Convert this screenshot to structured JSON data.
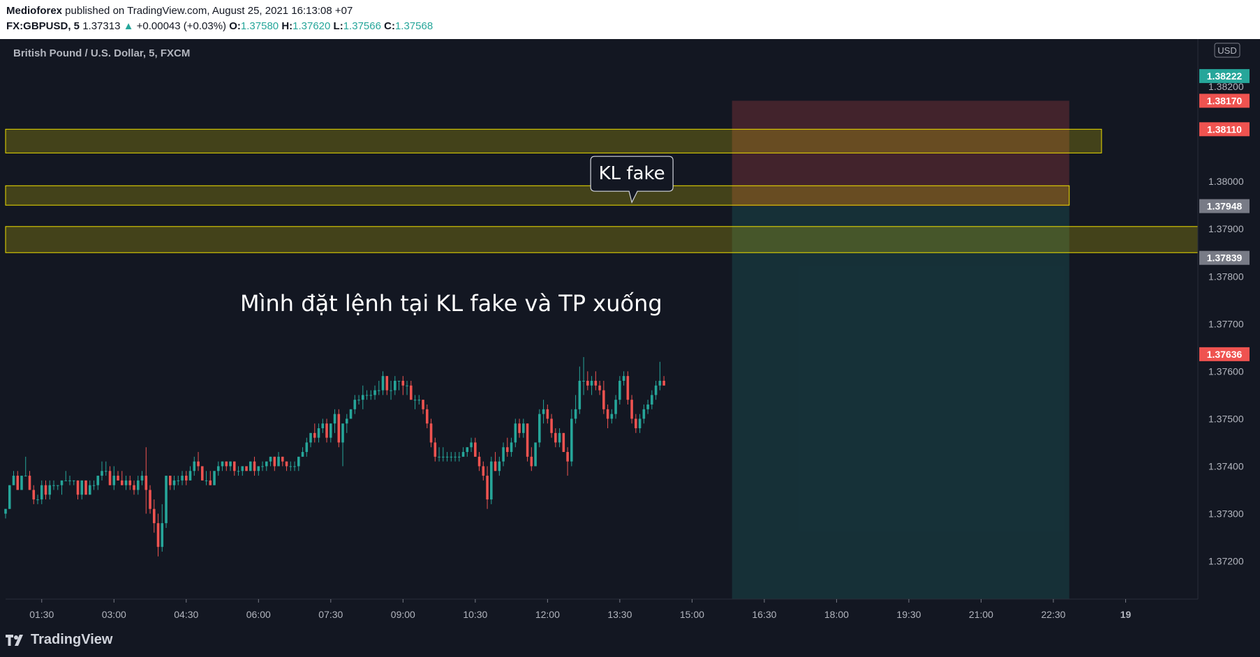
{
  "header": {
    "publisher": "Medioforex",
    "published_text": " published on TradingView.com, August 25, 2021 16:13:08 +07",
    "symbol": "FX:GBPUSD, 5",
    "last": "1.37313",
    "change": "+0.00043 (+0.03%)",
    "o_label": "O:",
    "o_value": "1.37580",
    "h_label": "H:",
    "h_value": "1.37620",
    "l_label": "L:",
    "l_value": "1.37566",
    "c_label": "C:",
    "c_value": "1.37568"
  },
  "legend_title": "British Pound / U.S. Dollar, 5, FXCM",
  "footer": {
    "brand": "TradingView"
  },
  "colors": {
    "background": "#131722",
    "up": "#26a69a",
    "down": "#ef5350",
    "zone": "#f0e000",
    "stop_zone": "#ef5350",
    "target_zone": "#26a69a",
    "axis_text": "#b2b5be"
  },
  "chart_data": {
    "type": "candlestick",
    "title": "British Pound / U.S. Dollar, 5, FXCM",
    "y_unit": "USD",
    "ylim": [
      1.3712,
      1.383
    ],
    "y_ticks": [
      "1.37200",
      "1.37300",
      "1.37400",
      "1.37500",
      "1.37600",
      "1.37700",
      "1.37800",
      "1.37900",
      "1.38000",
      "1.38200"
    ],
    "x_ticks": [
      "01:30",
      "03:00",
      "04:30",
      "06:00",
      "07:30",
      "09:00",
      "10:30",
      "12:00",
      "13:30",
      "15:00",
      "16:30",
      "18:00",
      "19:30",
      "21:00",
      "22:30",
      "19"
    ],
    "time_range_hours": [
      0.75,
      25.5
    ],
    "price_labels": [
      {
        "value": "1.38222",
        "color": "#26a69a"
      },
      {
        "value": "1.38170",
        "color": "#ef5350"
      },
      {
        "value": "1.38110",
        "color": "#ef5350"
      },
      {
        "value": "1.37948",
        "color": "#787b86"
      },
      {
        "value": "1.37839",
        "color": "#787b86"
      },
      {
        "value": "1.37636",
        "color": "#ef5350"
      }
    ],
    "zones": [
      {
        "top": 1.3811,
        "bottom": 1.3806,
        "end_time": 23.5
      },
      {
        "top": 1.37991,
        "bottom": 1.3795,
        "end_time": 22.83
      },
      {
        "top": 1.37905,
        "bottom": 1.3785,
        "end_time": 25.5
      }
    ],
    "position": {
      "side": "short",
      "start_time": 15.83,
      "end_time": 22.83,
      "entry": 1.37948,
      "stop": 1.3817,
      "target": 1.3715
    },
    "annotations": [
      {
        "type": "callout",
        "text": "KL fake",
        "time": 13.75,
        "price": 1.3795
      },
      {
        "type": "text",
        "text": "Mình đặt lệnh tại KL fake và TP xuống",
        "time": 10.0,
        "price": 1.37727
      }
    ],
    "candles": {
      "start_time": 0.75,
      "interval_hours": 0.08333,
      "columns": [
        "open",
        "high",
        "low",
        "close"
      ],
      "values": [
        [
          1.373,
          1.3731,
          1.3729,
          1.3731
        ],
        [
          1.3731,
          1.3736,
          1.3731,
          1.3736
        ],
        [
          1.3736,
          1.3739,
          1.3736,
          1.3738
        ],
        [
          1.3738,
          1.3739,
          1.3735,
          1.3735
        ],
        [
          1.3735,
          1.3738,
          1.3735,
          1.3738
        ],
        [
          1.3738,
          1.3742,
          1.3738,
          1.3738
        ],
        [
          1.3738,
          1.3739,
          1.3735,
          1.3735
        ],
        [
          1.3735,
          1.3736,
          1.3732,
          1.3733
        ],
        [
          1.3733,
          1.3734,
          1.3732,
          1.3733
        ],
        [
          1.3733,
          1.3737,
          1.3732,
          1.3736
        ],
        [
          1.3736,
          1.3737,
          1.3733,
          1.3734
        ],
        [
          1.3734,
          1.3737,
          1.3733,
          1.3736
        ],
        [
          1.3736,
          1.3737,
          1.3735,
          1.3736
        ],
        [
          1.3736,
          1.3736,
          1.3735,
          1.3736
        ],
        [
          1.3736,
          1.3737,
          1.3734,
          1.3737
        ],
        [
          1.3737,
          1.3739,
          1.3737,
          1.3737
        ],
        [
          1.3737,
          1.3738,
          1.3736,
          1.3737
        ],
        [
          1.3737,
          1.3737,
          1.3736,
          1.3737
        ],
        [
          1.3737,
          1.3737,
          1.3733,
          1.3734
        ],
        [
          1.3734,
          1.3737,
          1.3733,
          1.3737
        ],
        [
          1.3737,
          1.3737,
          1.3734,
          1.3734
        ],
        [
          1.3734,
          1.3737,
          1.3734,
          1.3736
        ],
        [
          1.3736,
          1.3737,
          1.3735,
          1.3736
        ],
        [
          1.3736,
          1.3738,
          1.3735,
          1.3738
        ],
        [
          1.3738,
          1.3741,
          1.3737,
          1.3739
        ],
        [
          1.3739,
          1.3741,
          1.3738,
          1.3739
        ],
        [
          1.3739,
          1.374,
          1.3736,
          1.3736
        ],
        [
          1.3736,
          1.374,
          1.3735,
          1.3738
        ],
        [
          1.3738,
          1.3739,
          1.3737,
          1.3737
        ],
        [
          1.3737,
          1.3739,
          1.3736,
          1.3736
        ],
        [
          1.3736,
          1.3738,
          1.3735,
          1.3737
        ],
        [
          1.3737,
          1.3738,
          1.3735,
          1.3736
        ],
        [
          1.3736,
          1.3737,
          1.3734,
          1.3735
        ],
        [
          1.3735,
          1.3738,
          1.3734,
          1.3737
        ],
        [
          1.3737,
          1.3739,
          1.3736,
          1.3738
        ],
        [
          1.3738,
          1.3744,
          1.373,
          1.3735
        ],
        [
          1.3735,
          1.3736,
          1.373,
          1.3731
        ],
        [
          1.3731,
          1.3733,
          1.3726,
          1.3728
        ],
        [
          1.3728,
          1.373,
          1.3721,
          1.3723
        ],
        [
          1.3723,
          1.3732,
          1.3722,
          1.3728
        ],
        [
          1.3728,
          1.3738,
          1.3727,
          1.3738
        ],
        [
          1.3738,
          1.3738,
          1.3735,
          1.3736
        ],
        [
          1.3736,
          1.3738,
          1.3735,
          1.3737
        ],
        [
          1.3737,
          1.3738,
          1.3736,
          1.3737
        ],
        [
          1.3737,
          1.3739,
          1.3736,
          1.3738
        ],
        [
          1.3738,
          1.3739,
          1.3736,
          1.3737
        ],
        [
          1.3737,
          1.374,
          1.3737,
          1.3739
        ],
        [
          1.3739,
          1.3742,
          1.3738,
          1.3741
        ],
        [
          1.3741,
          1.3743,
          1.3739,
          1.374
        ],
        [
          1.374,
          1.374,
          1.3737,
          1.3737
        ],
        [
          1.3737,
          1.3739,
          1.3736,
          1.3737
        ],
        [
          1.3737,
          1.3739,
          1.3736,
          1.3736
        ],
        [
          1.3736,
          1.3739,
          1.3736,
          1.3739
        ],
        [
          1.3739,
          1.3741,
          1.3738,
          1.374
        ],
        [
          1.374,
          1.3741,
          1.3739,
          1.3741
        ],
        [
          1.3741,
          1.3741,
          1.3739,
          1.374
        ],
        [
          1.374,
          1.3741,
          1.3739,
          1.3741
        ],
        [
          1.3741,
          1.3741,
          1.3738,
          1.3739
        ],
        [
          1.3739,
          1.374,
          1.3738,
          1.3739
        ],
        [
          1.3739,
          1.374,
          1.3738,
          1.374
        ],
        [
          1.374,
          1.374,
          1.3739,
          1.3739
        ],
        [
          1.3739,
          1.3741,
          1.3739,
          1.3741
        ],
        [
          1.3741,
          1.3742,
          1.3738,
          1.3739
        ],
        [
          1.3739,
          1.374,
          1.3738,
          1.374
        ],
        [
          1.374,
          1.3741,
          1.3739,
          1.374
        ],
        [
          1.374,
          1.3741,
          1.3739,
          1.3741
        ],
        [
          1.3741,
          1.3742,
          1.374,
          1.3742
        ],
        [
          1.3742,
          1.3742,
          1.3739,
          1.374
        ],
        [
          1.374,
          1.3743,
          1.374,
          1.3742
        ],
        [
          1.3742,
          1.3742,
          1.374,
          1.3741
        ],
        [
          1.3741,
          1.3741,
          1.3739,
          1.374
        ],
        [
          1.374,
          1.3741,
          1.3739,
          1.374
        ],
        [
          1.374,
          1.3741,
          1.3739,
          1.374
        ],
        [
          1.374,
          1.3742,
          1.3739,
          1.3742
        ],
        [
          1.3742,
          1.3744,
          1.3742,
          1.3743
        ],
        [
          1.3743,
          1.3746,
          1.3742,
          1.3745
        ],
        [
          1.3745,
          1.3747,
          1.3744,
          1.3747
        ],
        [
          1.3747,
          1.3749,
          1.3745,
          1.3746
        ],
        [
          1.3746,
          1.3749,
          1.3745,
          1.3748
        ],
        [
          1.3748,
          1.375,
          1.3747,
          1.3749
        ],
        [
          1.3749,
          1.375,
          1.3745,
          1.3746
        ],
        [
          1.3746,
          1.3749,
          1.3745,
          1.3749
        ],
        [
          1.3749,
          1.3752,
          1.3747,
          1.3751
        ],
        [
          1.3751,
          1.3752,
          1.3744,
          1.3745
        ],
        [
          1.3745,
          1.3748,
          1.374,
          1.3749
        ],
        [
          1.3749,
          1.3751,
          1.3747,
          1.375
        ],
        [
          1.375,
          1.3752,
          1.375,
          1.3752
        ],
        [
          1.3752,
          1.3755,
          1.3751,
          1.3754
        ],
        [
          1.3754,
          1.3755,
          1.3753,
          1.3754
        ],
        [
          1.3754,
          1.3757,
          1.3752,
          1.3755
        ],
        [
          1.3755,
          1.3756,
          1.3754,
          1.3755
        ],
        [
          1.3755,
          1.3756,
          1.3754,
          1.3755
        ],
        [
          1.3755,
          1.3757,
          1.3754,
          1.3756
        ],
        [
          1.3756,
          1.3758,
          1.3755,
          1.3756
        ],
        [
          1.3756,
          1.376,
          1.3755,
          1.3759
        ],
        [
          1.3759,
          1.3759,
          1.3755,
          1.3756
        ],
        [
          1.3756,
          1.3758,
          1.3754,
          1.3756
        ],
        [
          1.3756,
          1.3759,
          1.3755,
          1.3758
        ],
        [
          1.3758,
          1.3758,
          1.3756,
          1.3758
        ],
        [
          1.3758,
          1.3759,
          1.3755,
          1.3757
        ],
        [
          1.3757,
          1.3758,
          1.3755,
          1.3757
        ],
        [
          1.3757,
          1.3758,
          1.3754,
          1.3754
        ],
        [
          1.3754,
          1.3755,
          1.3752,
          1.3754
        ],
        [
          1.3754,
          1.3755,
          1.3753,
          1.3754
        ],
        [
          1.3754,
          1.3754,
          1.3751,
          1.3752
        ],
        [
          1.3752,
          1.3753,
          1.3748,
          1.3749
        ],
        [
          1.3749,
          1.375,
          1.3744,
          1.3745
        ],
        [
          1.3745,
          1.3746,
          1.3741,
          1.3742
        ],
        [
          1.3742,
          1.3744,
          1.3741,
          1.3742
        ],
        [
          1.3742,
          1.3744,
          1.3741,
          1.3742
        ],
        [
          1.3742,
          1.3743,
          1.3741,
          1.3742
        ],
        [
          1.3742,
          1.3743,
          1.3741,
          1.3742
        ],
        [
          1.3742,
          1.3743,
          1.3741,
          1.3742
        ],
        [
          1.3742,
          1.3743,
          1.3741,
          1.3742
        ],
        [
          1.3742,
          1.3744,
          1.3742,
          1.3743
        ],
        [
          1.3743,
          1.3744,
          1.3742,
          1.3744
        ],
        [
          1.3744,
          1.3746,
          1.3743,
          1.3745
        ],
        [
          1.3745,
          1.3746,
          1.3742,
          1.3742
        ],
        [
          1.3742,
          1.3743,
          1.3739,
          1.374
        ],
        [
          1.374,
          1.3741,
          1.3737,
          1.3738
        ],
        [
          1.3738,
          1.374,
          1.3731,
          1.3733
        ],
        [
          1.3733,
          1.3742,
          1.3732,
          1.3741
        ],
        [
          1.3741,
          1.3743,
          1.3739,
          1.3739
        ],
        [
          1.3739,
          1.3742,
          1.3738,
          1.3741
        ],
        [
          1.3741,
          1.3745,
          1.374,
          1.3744
        ],
        [
          1.3744,
          1.3746,
          1.3742,
          1.3743
        ],
        [
          1.3743,
          1.3746,
          1.3742,
          1.3745
        ],
        [
          1.3745,
          1.375,
          1.3744,
          1.3749
        ],
        [
          1.3749,
          1.375,
          1.3746,
          1.3747
        ],
        [
          1.3747,
          1.375,
          1.3746,
          1.3749
        ],
        [
          1.3749,
          1.3749,
          1.3741,
          1.3742
        ],
        [
          1.3742,
          1.3744,
          1.3739,
          1.374
        ],
        [
          1.374,
          1.3745,
          1.374,
          1.3745
        ],
        [
          1.3745,
          1.3752,
          1.3744,
          1.3751
        ],
        [
          1.3751,
          1.3754,
          1.3749,
          1.3752
        ],
        [
          1.3752,
          1.3753,
          1.3749,
          1.375
        ],
        [
          1.375,
          1.3751,
          1.3746,
          1.3747
        ],
        [
          1.3747,
          1.3748,
          1.3744,
          1.3745
        ],
        [
          1.3745,
          1.3748,
          1.3744,
          1.3747
        ],
        [
          1.3747,
          1.3747,
          1.3743,
          1.3743
        ],
        [
          1.3743,
          1.3744,
          1.3738,
          1.3741
        ],
        [
          1.3741,
          1.3752,
          1.374,
          1.375
        ],
        [
          1.375,
          1.3755,
          1.3749,
          1.3752
        ],
        [
          1.3752,
          1.3761,
          1.3751,
          1.3758
        ],
        [
          1.3758,
          1.3763,
          1.3755,
          1.3758
        ],
        [
          1.3758,
          1.376,
          1.3756,
          1.3757
        ],
        [
          1.3757,
          1.3759,
          1.3755,
          1.3758
        ],
        [
          1.3758,
          1.376,
          1.3756,
          1.3757
        ],
        [
          1.3757,
          1.3758,
          1.3755,
          1.3756
        ],
        [
          1.3756,
          1.3758,
          1.3751,
          1.3752
        ],
        [
          1.3752,
          1.3753,
          1.3748,
          1.375
        ],
        [
          1.375,
          1.3752,
          1.3749,
          1.3751
        ],
        [
          1.3751,
          1.3755,
          1.375,
          1.3754
        ],
        [
          1.3754,
          1.3759,
          1.3753,
          1.3758
        ],
        [
          1.3758,
          1.376,
          1.3757,
          1.3759
        ],
        [
          1.3759,
          1.376,
          1.3753,
          1.3754
        ],
        [
          1.3754,
          1.3755,
          1.3749,
          1.375
        ],
        [
          1.375,
          1.3751,
          1.3747,
          1.3748
        ],
        [
          1.3748,
          1.3751,
          1.3747,
          1.375
        ],
        [
          1.375,
          1.3753,
          1.3749,
          1.3752
        ],
        [
          1.3752,
          1.3754,
          1.3751,
          1.3753
        ],
        [
          1.3753,
          1.3756,
          1.3752,
          1.3755
        ],
        [
          1.3755,
          1.3758,
          1.3754,
          1.3757
        ],
        [
          1.3757,
          1.3762,
          1.3756,
          1.3758
        ],
        [
          1.3758,
          1.3759,
          1.3757,
          1.3757
        ]
      ]
    }
  }
}
